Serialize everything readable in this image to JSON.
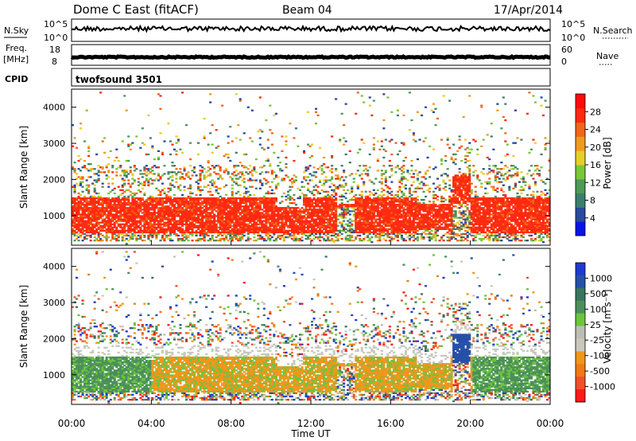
{
  "header": {
    "station": "Dome C East (fitACF)",
    "beam": "Beam 04",
    "date": "17/Apr/2014"
  },
  "aux": {
    "nsky_label": "N.Sky",
    "nsearch_label": "N.Search",
    "freq_label": "Freq.",
    "freq_unit": "[MHz]",
    "nave_label": "Nave",
    "cpid_label": "CPID",
    "cpid_value": "twofsound 3501",
    "noise_ticks": [
      "10^5",
      "10^0"
    ],
    "freq_ticks": [
      "18",
      "8"
    ],
    "nave_ticks": [
      "60",
      "0"
    ]
  },
  "colors": {
    "power": [
      "#0a14e6",
      "#2a4a9c",
      "#3c7e6e",
      "#4e9a56",
      "#7cc63a",
      "#e6cf2a",
      "#f19a20",
      "#f0661b",
      "#ff2a10",
      "#ff0a0a"
    ],
    "velocity": [
      "#1e3ad0",
      "#2650a8",
      "#3a7560",
      "#4b8f5a",
      "#6cc43e",
      "#bdbdb2",
      "#c8c8c0",
      "#f0961c",
      "#f07a14",
      "#f0502a",
      "#ff1a1a"
    ]
  },
  "chart_data": [
    {
      "type": "heatmap",
      "name": "power",
      "ylabel": "Slant Range [km]",
      "ylim": [
        180,
        4500
      ],
      "y_ticks": [
        1000,
        2000,
        3000,
        4000
      ],
      "xlim": [
        0,
        24
      ],
      "colorbar_label": "Power [dB]",
      "colorbar_ticks": [
        "4",
        "8",
        "12",
        "16",
        "20",
        "24",
        "28"
      ],
      "colorbar_range": [
        0,
        30
      ]
    },
    {
      "type": "heatmap",
      "name": "velocity",
      "ylabel": "Slant Range [km]",
      "ylim": [
        180,
        4500
      ],
      "y_ticks": [
        1000,
        2000,
        3000,
        4000
      ],
      "xlim": [
        0,
        24
      ],
      "colorbar_label": "Velocity [m s⁻¹]",
      "colorbar_ticks": [
        "1000",
        "500",
        "100",
        "25",
        "-25",
        "-100",
        "-500",
        "-1000"
      ],
      "colorbar_range": [
        1000,
        -1000
      ]
    }
  ],
  "time_axis": {
    "ticks": [
      "00:00",
      "04:00",
      "08:00",
      "12:00",
      "16:00",
      "20:00",
      "00:00"
    ],
    "label": "Time UT"
  }
}
